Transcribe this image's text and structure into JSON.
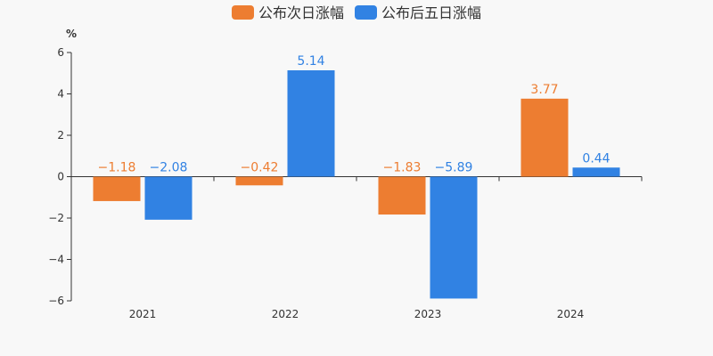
{
  "chart_data": {
    "type": "bar",
    "ylabel": "%",
    "ylim": [
      -6,
      6
    ],
    "yticks": [
      -6,
      -4,
      -2,
      0,
      2,
      4,
      6
    ],
    "ytick_labels": [
      "−6",
      "−4",
      "−2",
      "0",
      "2",
      "4",
      "6"
    ],
    "categories": [
      "2021",
      "2022",
      "2023",
      "2024"
    ],
    "legend_position": "top-center",
    "grid": false,
    "series": [
      {
        "name": "公布次日涨幅",
        "color": "#ed7d31",
        "values": [
          -1.18,
          -0.42,
          -1.83,
          3.77
        ],
        "value_labels": [
          "−1.18",
          "−0.42",
          "−1.83",
          "3.77"
        ]
      },
      {
        "name": "公布后五日涨幅",
        "color": "#3182e3",
        "values": [
          -2.08,
          5.14,
          -5.89,
          0.44
        ],
        "value_labels": [
          "−2.08",
          "5.14",
          "−5.89",
          "0.44"
        ]
      }
    ]
  }
}
